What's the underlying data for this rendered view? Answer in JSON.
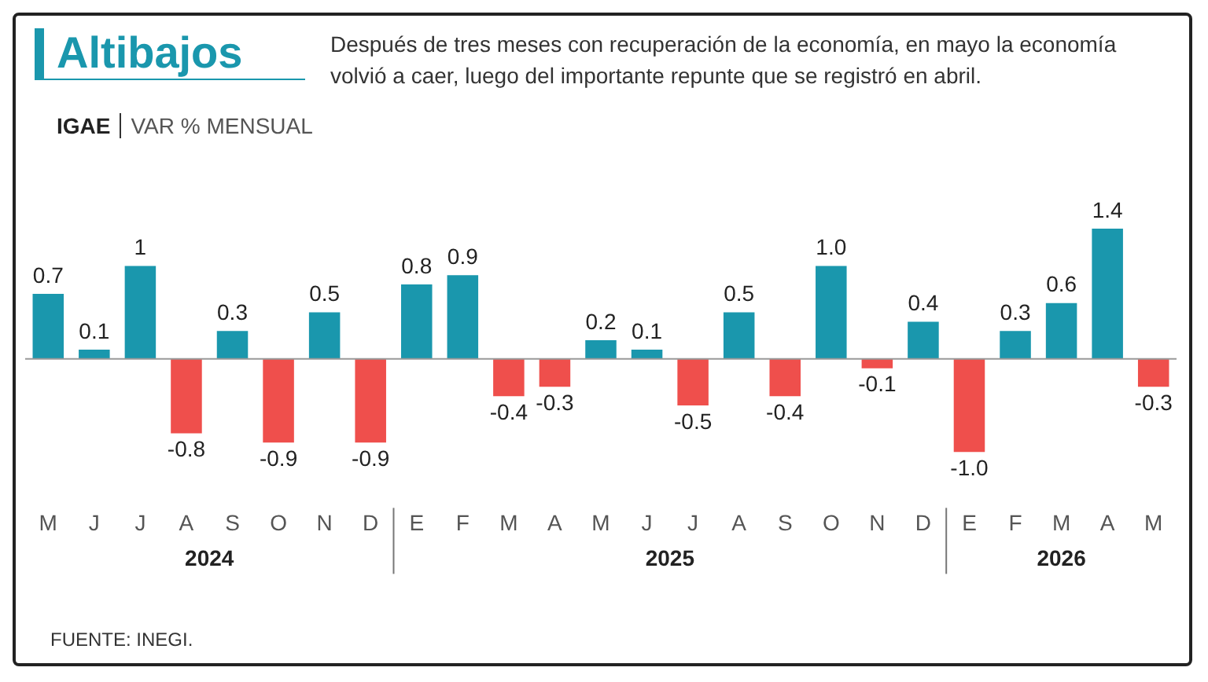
{
  "chart_data": {
    "type": "bar",
    "title": "Altibajos",
    "subtitle": "Después de tres meses con recuperación de la economía, en mayo la economía volvió a caer, luego del importante repunte que se registró en abril.",
    "ylabel": "IGAE",
    "annotations": [
      "VAR % MENSUAL",
      "2024",
      "2025",
      "2026",
      "FUENTE:  INEGI."
    ],
    "categories": [
      "M",
      "J",
      "J",
      "A",
      "S",
      "O",
      "N",
      "D",
      "E",
      "F",
      "M",
      "A",
      "M",
      "J",
      "J",
      "A",
      "S",
      "O",
      "N",
      "D",
      "E",
      "F",
      "M",
      "A",
      "M"
    ],
    "values": [
      0.7,
      0.1,
      1,
      -0.8,
      0.3,
      -0.9,
      0.5,
      -0.9,
      0.8,
      0.9,
      -0.4,
      -0.3,
      0.2,
      0.1,
      -0.5,
      0.5,
      -0.4,
      1.0,
      -0.1,
      0.4,
      -1.0,
      0.3,
      0.6,
      1.4,
      -0.3
    ],
    "value_labels": [
      "0.7",
      "0.1",
      "1",
      "-0.8",
      "0.3",
      "-0.9",
      "0.5",
      "-0.9",
      "0.8",
      "0.9",
      "-0.4",
      "-0.3",
      "0.2",
      "0.1",
      "-0.5",
      "0.5",
      "-0.4",
      "1.0",
      "-0.1",
      "0.4",
      "-1.0",
      "0.3",
      "0.6",
      "1.4",
      "-0.3"
    ],
    "colors": [
      "#1a97ad",
      "#1a97ad",
      "#1a97ad",
      "#ef4f4c",
      "#1a97ad",
      "#ef4f4c",
      "#1a97ad",
      "#ef4f4c",
      "#1a97ad",
      "#1a97ad",
      "#ef4f4c",
      "#ef4f4c",
      "#1a97ad",
      "#1a97ad",
      "#ef4f4c",
      "#1a97ad",
      "#ef4f4c",
      "#1a97ad",
      "#ef4f4c",
      "#1a97ad",
      "#ef4f4c",
      "#1a97ad",
      "#1a97ad",
      "#1a97ad",
      "#ef4f4c"
    ],
    "grid": false,
    "legend": false
  }
}
